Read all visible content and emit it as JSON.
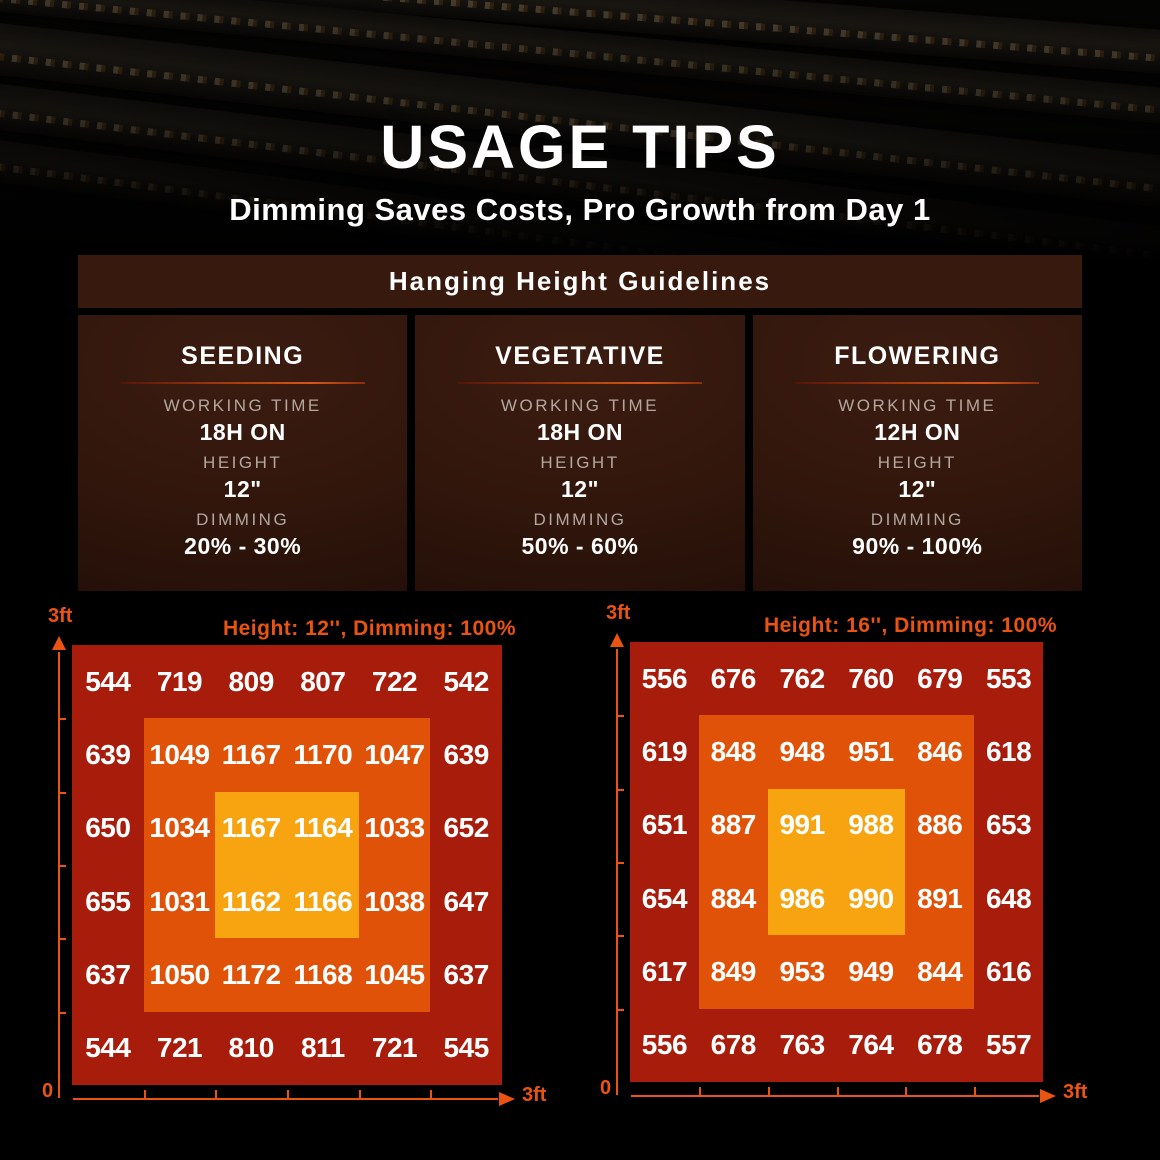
{
  "header": {
    "title": "USAGE TIPS",
    "subtitle": "Dimming Saves Costs, Pro Growth from Day 1"
  },
  "guidelines": {
    "title": "Hanging Height Guidelines",
    "stages": [
      {
        "name": "SEEDING",
        "working_time_label": "WORKING TIME",
        "working_time": "18H ON",
        "height_label": "HEIGHT",
        "height": "12\"",
        "dimming_label": "DIMMING",
        "dimming": "20% - 30%"
      },
      {
        "name": "VEGETATIVE",
        "working_time_label": "WORKING TIME",
        "working_time": "18H ON",
        "height_label": "HEIGHT",
        "height": "12\"",
        "dimming_label": "DIMMING",
        "dimming": "50% - 60%"
      },
      {
        "name": "FLOWERING",
        "working_time_label": "WORKING TIME",
        "working_time": "12H ON",
        "height_label": "HEIGHT",
        "height": "12\"",
        "dimming_label": "DIMMING",
        "dimming": "90% - 100%"
      }
    ]
  },
  "colors": {
    "accent_orange": "#ea5410",
    "panel_brown": "#38190e",
    "zone_outer_red": "#a81c0b",
    "zone_middle_orange": "#e05207",
    "zone_inner_yellow": "#f7a410"
  },
  "chart_data": [
    {
      "type": "heatmap",
      "title": "Height: 12'', Dimming: 100%",
      "grid": "6x6",
      "x_axis": {
        "start_label": "0",
        "end_label": "3ft",
        "range_ft": [
          0,
          3
        ],
        "ticks": 5
      },
      "y_axis": {
        "end_label": "3ft",
        "range_ft": [
          0,
          3
        ],
        "ticks": 5
      },
      "rows": [
        [
          544,
          719,
          809,
          807,
          722,
          542
        ],
        [
          639,
          1049,
          1167,
          1170,
          1047,
          639
        ],
        [
          650,
          1034,
          1167,
          1164,
          1033,
          652
        ],
        [
          655,
          1031,
          1162,
          1166,
          1038,
          647
        ],
        [
          637,
          1050,
          1172,
          1168,
          1045,
          637
        ],
        [
          544,
          721,
          810,
          811,
          721,
          545
        ]
      ],
      "zone_colors": {
        "outer": "#a81c0b",
        "middle": "#e05207",
        "inner": "#f7a410"
      }
    },
    {
      "type": "heatmap",
      "title": "Height: 16'', Dimming: 100%",
      "grid": "6x6",
      "x_axis": {
        "start_label": "0",
        "end_label": "3ft",
        "range_ft": [
          0,
          3
        ],
        "ticks": 5
      },
      "y_axis": {
        "end_label": "3ft",
        "range_ft": [
          0,
          3
        ],
        "ticks": 5
      },
      "rows": [
        [
          556,
          676,
          762,
          760,
          679,
          553
        ],
        [
          619,
          848,
          948,
          951,
          846,
          618
        ],
        [
          651,
          887,
          991,
          988,
          886,
          653
        ],
        [
          654,
          884,
          986,
          990,
          891,
          648
        ],
        [
          617,
          849,
          953,
          949,
          844,
          616
        ],
        [
          556,
          678,
          763,
          764,
          678,
          557
        ]
      ],
      "zone_colors": {
        "outer": "#a81c0b",
        "middle": "#e05207",
        "inner": "#f7a410"
      }
    }
  ]
}
